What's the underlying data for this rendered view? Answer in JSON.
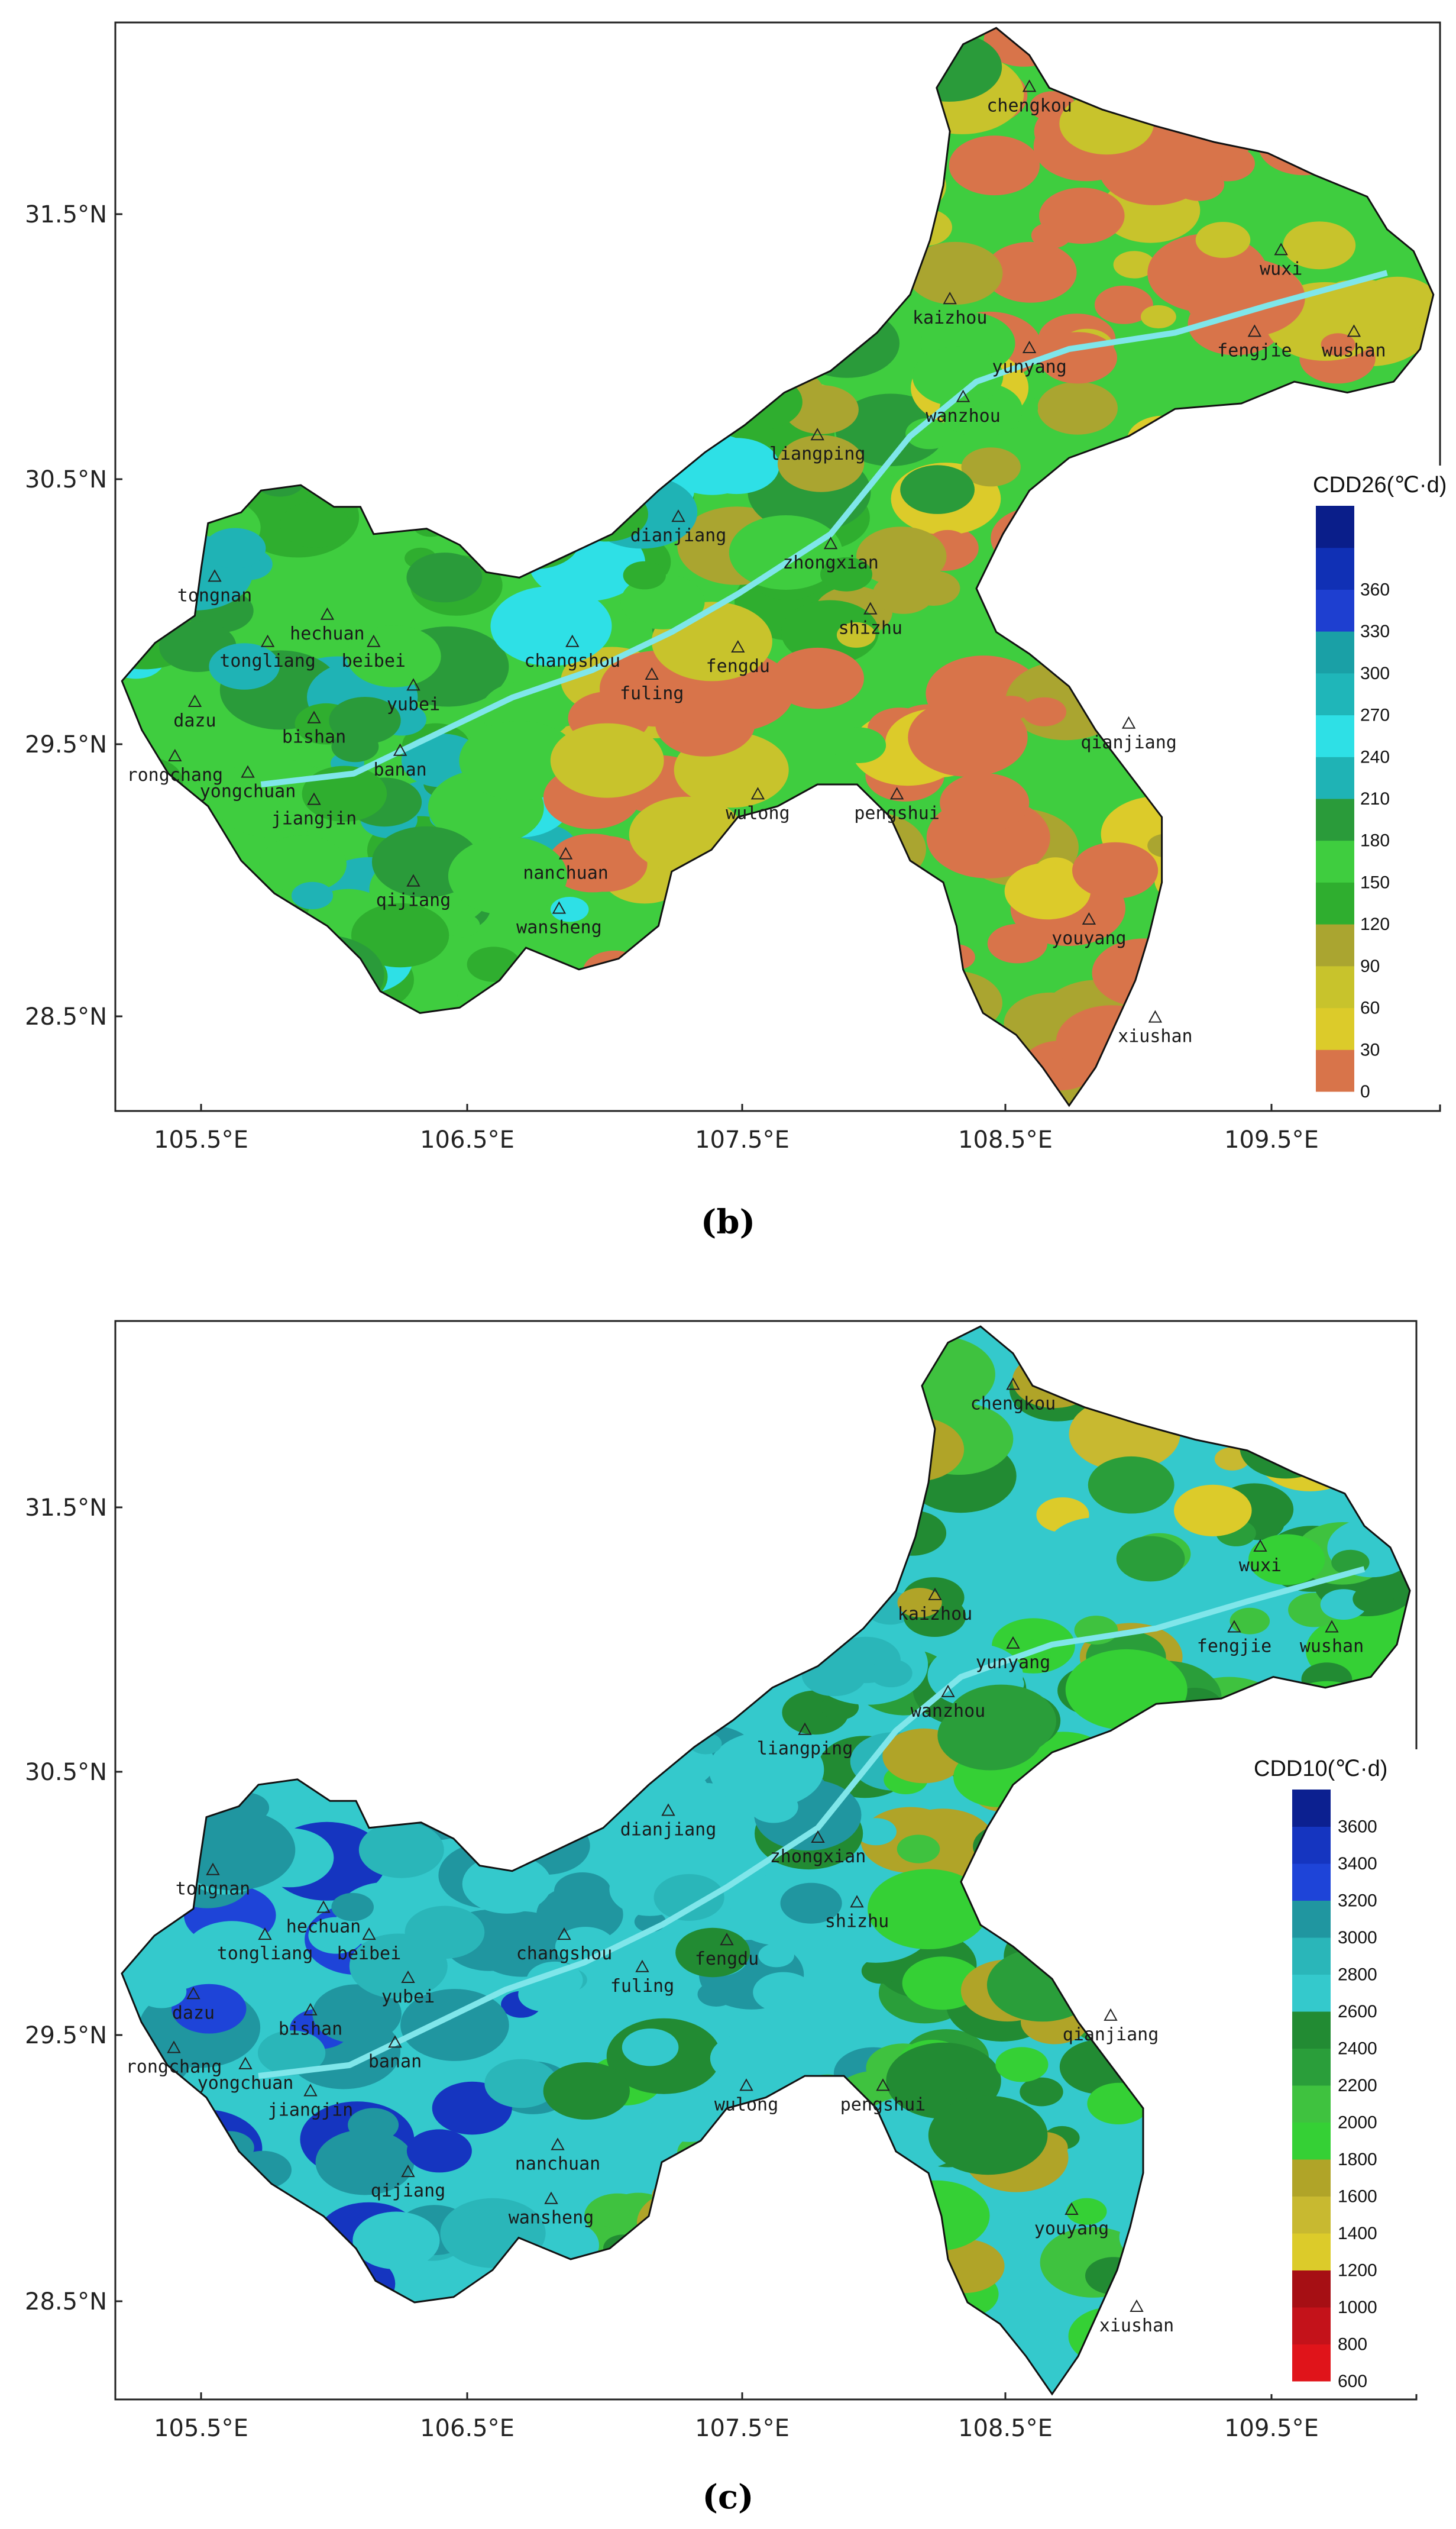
{
  "panels": [
    {
      "caption": "(b)",
      "legend_title": "CDD26(℃·d)",
      "legend_ticks": [
        "0",
        "30",
        "60",
        "90",
        "120",
        "150",
        "180",
        "210",
        "240",
        "270",
        "300",
        "330",
        "360"
      ],
      "legend_colors": [
        "#d8744a",
        "#dccb2a",
        "#c8c32c",
        "#aaa530",
        "#2fae2f",
        "#3fcd3f",
        "#2a9b3a",
        "#1fb3b5",
        "#2ee0e6",
        "#1fb6b9",
        "#1aa0a6",
        "#1e3fd0",
        "#1030b5",
        "#0a1e8a"
      ],
      "lat_labels": [
        "31.5°N",
        "30.5°N",
        "29.5°N",
        "28.5°N"
      ],
      "lon_labels": [
        "105.5°E",
        "106.5°E",
        "107.5°E",
        "108.5°E",
        "109.5°E"
      ],
      "places": [
        "chengkou",
        "wuxi",
        "kaizhou",
        "fengjie",
        "wushan",
        "yunyang",
        "wanzhou",
        "liangping",
        "dianjiang",
        "zhongxian",
        "tongnan",
        "hechuan",
        "tongliang",
        "beibei",
        "changshou",
        "fengdu",
        "shizhu",
        "dazu",
        "bishan",
        "yubei",
        "fuling",
        "qianjiang",
        "rongchang",
        "yongchuan",
        "banan",
        "jiangjin",
        "wulong",
        "pengshui",
        "nanchuan",
        "qijiang",
        "wansheng",
        "youyang",
        "xiushan"
      ]
    },
    {
      "caption": "(c)",
      "legend_title": "CDD10(℃·d)",
      "legend_ticks": [
        "600",
        "800",
        "1000",
        "1200",
        "1400",
        "1600",
        "1800",
        "2000",
        "2200",
        "2400",
        "2600",
        "2800",
        "3000",
        "3200",
        "3400",
        "3600"
      ],
      "legend_colors": [
        "#e0141a",
        "#c4121a",
        "#a60f14",
        "#dccb2a",
        "#c8b930",
        "#b0a428",
        "#35d035",
        "#3fc23f",
        "#2a9e3a",
        "#228b33",
        "#34c9cc",
        "#2ab6b9",
        "#2096a0",
        "#1e44d8",
        "#1535c0",
        "#0c2090"
      ],
      "lat_labels": [
        "31.5°N",
        "30.5°N",
        "29.5°N",
        "28.5°N"
      ],
      "lon_labels": [
        "105.5°E",
        "106.5°E",
        "107.5°E",
        "108.5°E",
        "109.5°E"
      ],
      "places": [
        "chengkou",
        "wuxi",
        "kaizhou",
        "fengjie",
        "wushan",
        "yunyang",
        "wanzhou",
        "liangping",
        "dianjiang",
        "zhongxian",
        "tongnan",
        "hechuan",
        "tongliang",
        "beibei",
        "changshou",
        "fengdu",
        "shizhu",
        "dazu",
        "bishan",
        "yubei",
        "fuling",
        "qianjiang",
        "rongchang",
        "yongchuan",
        "banan",
        "jiangjin",
        "wulong",
        "pengshui",
        "nanchuan",
        "qijiang",
        "wansheng",
        "youyang",
        "xiushan"
      ]
    }
  ]
}
